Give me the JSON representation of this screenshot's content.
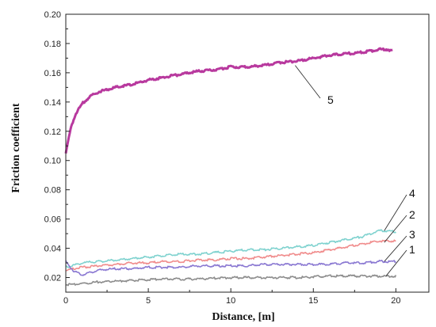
{
  "chart_data": {
    "type": "line",
    "title": "",
    "xlabel": "Distance, [m]",
    "ylabel": "Friction coefficient",
    "xlim": [
      0,
      22
    ],
    "ylim": [
      0.01,
      0.2
    ],
    "x_ticks": [
      "0",
      "5",
      "10",
      "15",
      "20"
    ],
    "y_ticks": [
      "0.02",
      "0.04",
      "0.06",
      "0.08",
      "0.10",
      "0.12",
      "0.14",
      "0.16",
      "0.18",
      "0.20"
    ],
    "grid": false,
    "series": [
      {
        "name": "5",
        "color": "#b8399e",
        "x": [
          0,
          0.3,
          0.6,
          1,
          1.5,
          2,
          3,
          4,
          5,
          6,
          7,
          8,
          9,
          10,
          11,
          12,
          13,
          14,
          15,
          16,
          17,
          18,
          19,
          19.5,
          19.8
        ],
        "y": [
          0.105,
          0.122,
          0.132,
          0.139,
          0.144,
          0.147,
          0.15,
          0.152,
          0.155,
          0.157,
          0.159,
          0.161,
          0.162,
          0.164,
          0.164,
          0.165,
          0.167,
          0.168,
          0.17,
          0.172,
          0.173,
          0.174,
          0.176,
          0.176,
          0.175
        ]
      },
      {
        "name": "4",
        "color": "#7fd2cf",
        "x": [
          0,
          1,
          2,
          3,
          4,
          5,
          6,
          7,
          8,
          9,
          10,
          11,
          12,
          13,
          14,
          15,
          16,
          17,
          18,
          19,
          19.5,
          20
        ],
        "y": [
          0.027,
          0.03,
          0.031,
          0.032,
          0.033,
          0.034,
          0.035,
          0.036,
          0.036,
          0.037,
          0.038,
          0.039,
          0.039,
          0.04,
          0.041,
          0.042,
          0.044,
          0.046,
          0.048,
          0.052,
          0.052,
          0.051
        ]
      },
      {
        "name": "2",
        "color": "#f08c8c",
        "x": [
          0,
          1,
          2,
          3,
          4,
          5,
          6,
          7,
          8,
          9,
          10,
          11,
          12,
          13,
          14,
          15,
          16,
          17,
          18,
          19,
          20
        ],
        "y": [
          0.025,
          0.027,
          0.028,
          0.029,
          0.03,
          0.03,
          0.031,
          0.031,
          0.032,
          0.032,
          0.033,
          0.033,
          0.034,
          0.035,
          0.036,
          0.037,
          0.039,
          0.041,
          0.043,
          0.045,
          0.045
        ]
      },
      {
        "name": "3",
        "color": "#8a78d2",
        "x": [
          0,
          0.5,
          1,
          2,
          3,
          4,
          5,
          6,
          7,
          8,
          9,
          10,
          11,
          12,
          13,
          14,
          15,
          16,
          17,
          18,
          19,
          20
        ],
        "y": [
          0.031,
          0.024,
          0.022,
          0.025,
          0.026,
          0.026,
          0.027,
          0.027,
          0.027,
          0.028,
          0.028,
          0.028,
          0.028,
          0.029,
          0.029,
          0.029,
          0.029,
          0.029,
          0.03,
          0.03,
          0.031,
          0.031
        ]
      },
      {
        "name": "1",
        "color": "#8c8c8c",
        "x": [
          0,
          1,
          2,
          4,
          6,
          8,
          10,
          12,
          14,
          16,
          18,
          20
        ],
        "y": [
          0.015,
          0.016,
          0.017,
          0.018,
          0.019,
          0.019,
          0.02,
          0.02,
          0.02,
          0.021,
          0.021,
          0.021
        ]
      }
    ]
  }
}
